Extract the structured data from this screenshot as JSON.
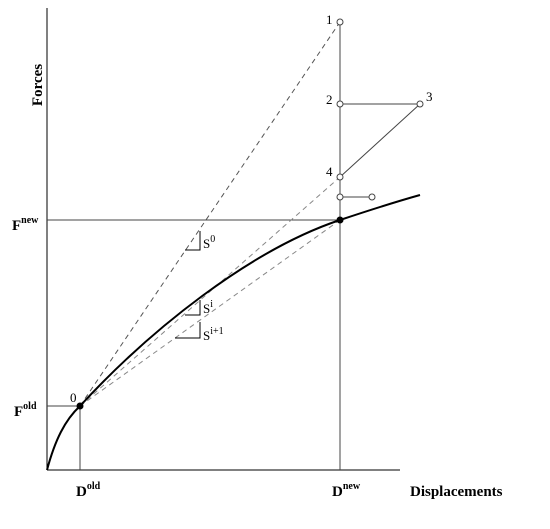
{
  "axes": {
    "y_label": "Forces",
    "x_label": "Displacements"
  },
  "labels": {
    "f_new": {
      "base": "F",
      "sup": "new"
    },
    "f_old": {
      "base": "F",
      "sup": "old"
    },
    "d_old": {
      "base": "D",
      "sup": "old"
    },
    "d_new": {
      "base": "D",
      "sup": "new"
    },
    "s_0": {
      "base": "S",
      "sup": "0"
    },
    "s_i": {
      "base": "S",
      "sup": "i"
    },
    "s_i1": {
      "base": "S",
      "sup": "i+1"
    }
  },
  "points": [
    "0",
    "1",
    "2",
    "3",
    "4"
  ]
}
